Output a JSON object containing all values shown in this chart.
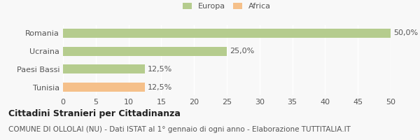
{
  "categories": [
    "Romania",
    "Ucraina",
    "Paesi Bassi",
    "Tunisia"
  ],
  "values": [
    50.0,
    25.0,
    12.5,
    12.5
  ],
  "labels": [
    "50,0%",
    "25,0%",
    "12,5%",
    "12,5%"
  ],
  "bar_colors": [
    "#b5cc8e",
    "#b5cc8e",
    "#b5cc8e",
    "#f5c08a"
  ],
  "legend_items": [
    {
      "label": "Europa",
      "color": "#b5cc8e"
    },
    {
      "label": "Africa",
      "color": "#f5c08a"
    }
  ],
  "xlim": [
    0,
    50
  ],
  "xticks": [
    0,
    5,
    10,
    15,
    20,
    25,
    30,
    35,
    40,
    45,
    50
  ],
  "title_bold": "Cittadini Stranieri per Cittadinanza",
  "subtitle": "COMUNE DI OLLOLAI (NU) - Dati ISTAT al 1° gennaio di ogni anno - Elaborazione TUTTITALIA.IT",
  "background_color": "#f8f8f8",
  "grid_color": "#ffffff",
  "bar_height": 0.5,
  "title_fontsize": 9,
  "subtitle_fontsize": 7.5,
  "tick_fontsize": 8,
  "label_fontsize": 8
}
